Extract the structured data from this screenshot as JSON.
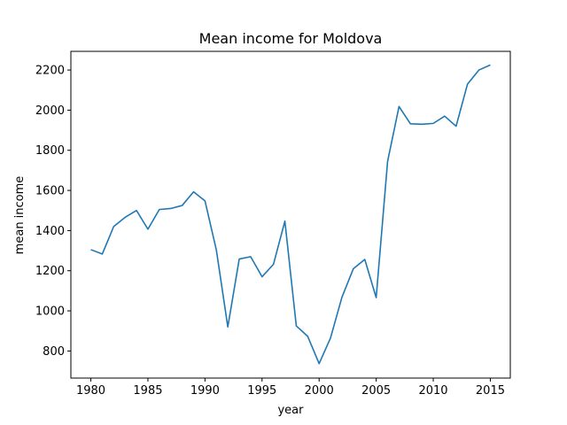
{
  "chart_data": {
    "type": "line",
    "title": "Mean income for Moldova",
    "xlabel": "year",
    "ylabel": "mean income",
    "xlim": [
      1978.25,
      1976.75
    ],
    "ylim": [
      665,
      2293
    ],
    "x_ticks": [
      1980,
      1985,
      1990,
      1995,
      2000,
      2005,
      2010,
      2015
    ],
    "y_ticks": [
      800,
      1000,
      1200,
      1400,
      1600,
      1800,
      2000,
      2200
    ],
    "grid": false,
    "legend": "none",
    "series": [
      {
        "color": "#1f77b4",
        "x": [
          1980,
          1981,
          1982,
          1983,
          1984,
          1985,
          1986,
          1987,
          1988,
          1989,
          1990,
          1991,
          1992,
          1993,
          1994,
          1995,
          1996,
          1997,
          1998,
          1999,
          2000,
          2001,
          2002,
          2003,
          2004,
          2005,
          2006,
          2007,
          2008,
          2009,
          2010,
          2011,
          2012,
          2013,
          2014,
          2015
        ],
        "values": [
          1305,
          1283,
          1420,
          1466,
          1500,
          1407,
          1505,
          1510,
          1525,
          1593,
          1548,
          1302,
          920,
          1258,
          1270,
          1170,
          1232,
          1447,
          925,
          873,
          737,
          865,
          1068,
          1210,
          1256,
          1066,
          1745,
          2018,
          1932,
          1930,
          1934,
          1970,
          1920,
          2130,
          2200,
          2225
        ]
      }
    ]
  }
}
